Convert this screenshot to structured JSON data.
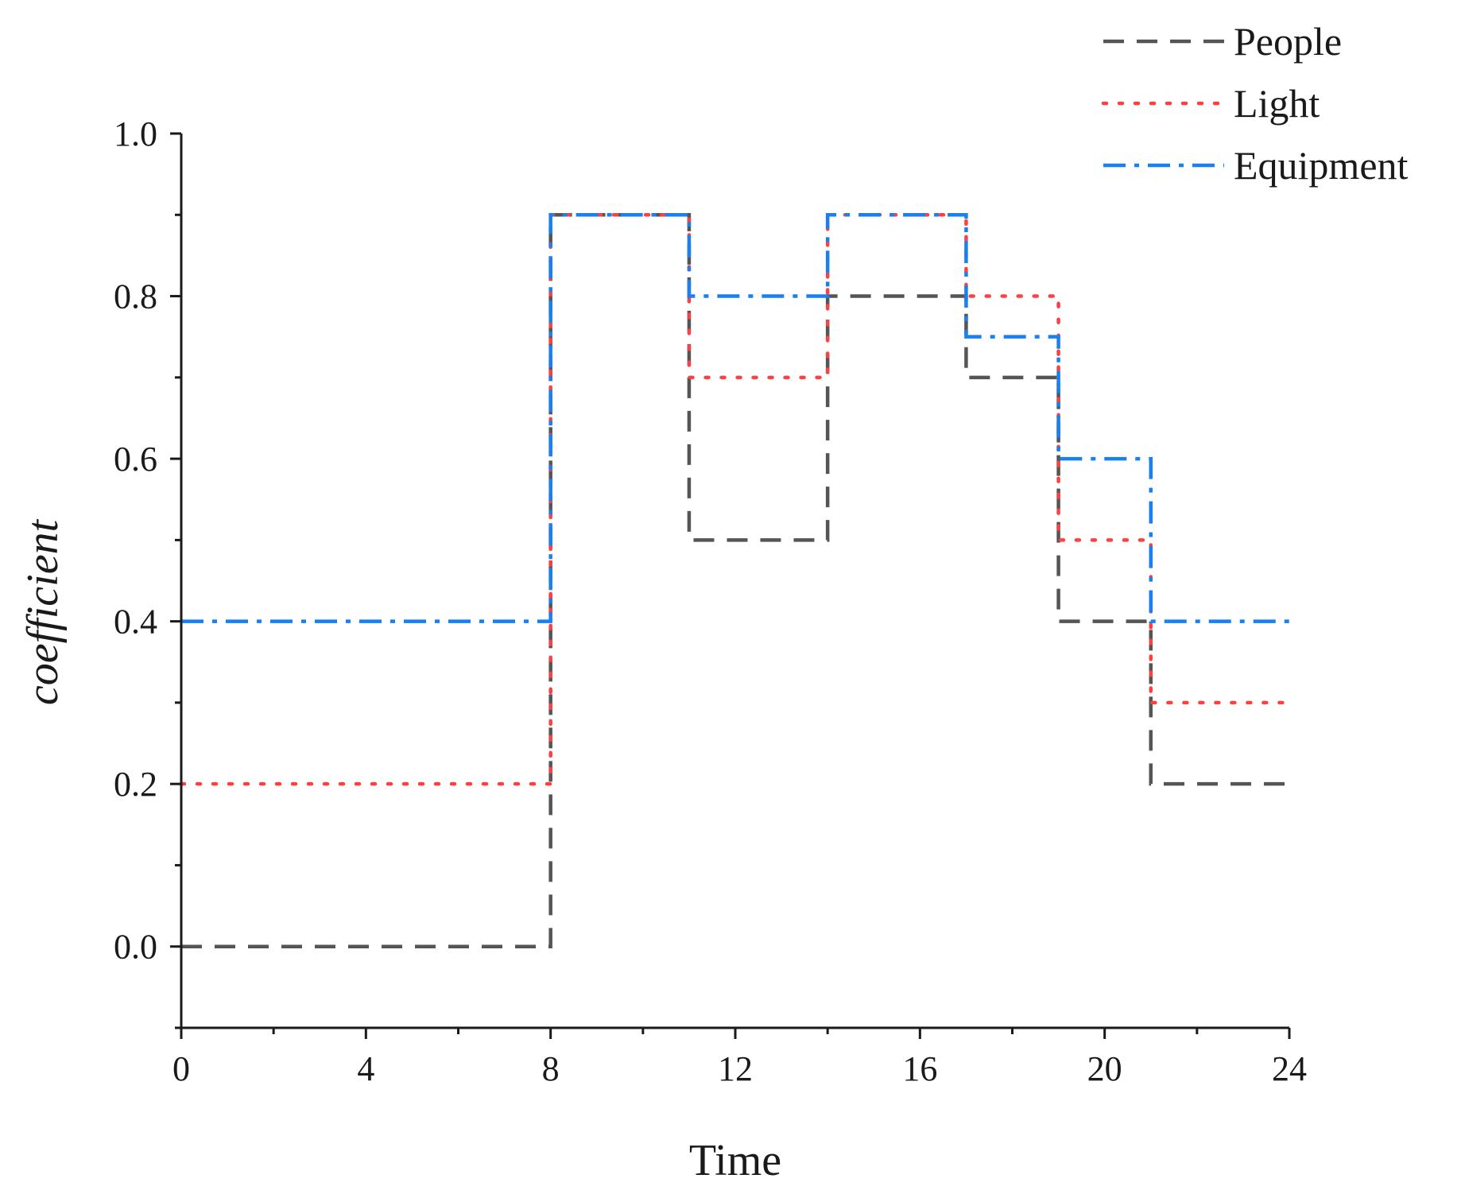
{
  "chart_data": {
    "type": "line",
    "step": "post",
    "title": "",
    "xlabel": "Time",
    "ylabel": "coefficient",
    "xlim": [
      0,
      24
    ],
    "ylim": [
      -0.1,
      1.0
    ],
    "xticks": [
      0,
      4,
      8,
      12,
      16,
      20,
      24
    ],
    "xtick_labels": [
      "0",
      "4",
      "8",
      "12",
      "16",
      "20",
      "24"
    ],
    "xminor_ticks": [
      2,
      6,
      10,
      14,
      18,
      22
    ],
    "yticks": [
      0.0,
      0.2,
      0.4,
      0.6,
      0.8,
      1.0
    ],
    "ytick_labels": [
      "0.0",
      "0.2",
      "0.4",
      "0.6",
      "0.8",
      "1.0"
    ],
    "yminor_ticks": [
      -0.1,
      0.1,
      0.3,
      0.5,
      0.7,
      0.9
    ],
    "grid": false,
    "legend_position": "top-right",
    "series": [
      {
        "name": "People",
        "style": "dash",
        "color": "#555555",
        "x": [
          0,
          8,
          11,
          14,
          17,
          19,
          21,
          24
        ],
        "y": [
          0.0,
          0.9,
          0.5,
          0.8,
          0.7,
          0.4,
          0.2,
          0.2
        ]
      },
      {
        "name": "Light",
        "style": "dot",
        "color": "#ff4040",
        "x": [
          0,
          8,
          11,
          14,
          17,
          19,
          21,
          24
        ],
        "y": [
          0.2,
          0.9,
          0.7,
          0.9,
          0.8,
          0.5,
          0.3,
          0.3
        ]
      },
      {
        "name": "Equipment",
        "style": "dashdot",
        "color": "#1a7ff0",
        "x": [
          0,
          8,
          11,
          14,
          17,
          19,
          21,
          24
        ],
        "y": [
          0.4,
          0.9,
          0.8,
          0.9,
          0.75,
          0.6,
          0.4,
          0.4
        ]
      }
    ]
  }
}
